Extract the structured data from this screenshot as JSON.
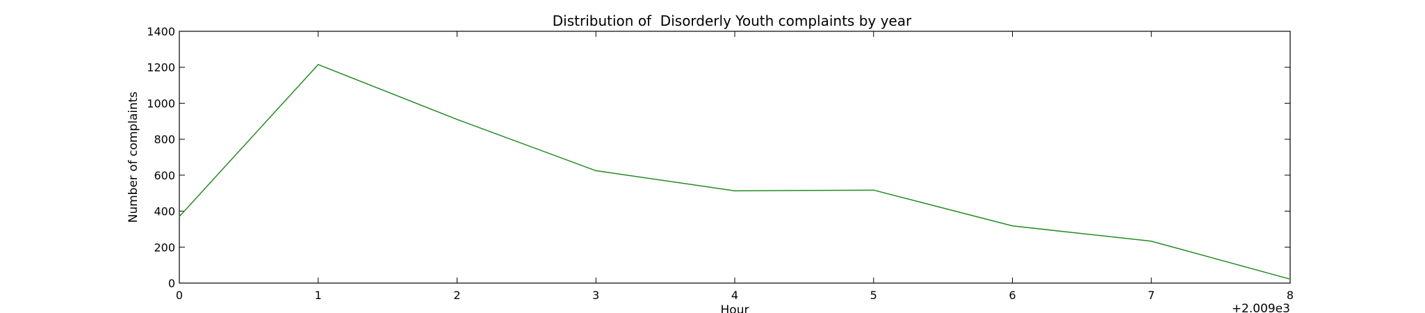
{
  "chart_data": {
    "type": "line",
    "title": "Distribution of  Disorderly Youth complaints by year",
    "xlabel": "Hour",
    "ylabel": "Number of complaints",
    "x_offset_label": "+2.009e3",
    "x_tick_labels": [
      "0",
      "1",
      "2",
      "3",
      "4",
      "5",
      "6",
      "7",
      "8"
    ],
    "y_tick_labels": [
      "0",
      "200",
      "400",
      "600",
      "800",
      "1000",
      "1200",
      "1400"
    ],
    "xlim": [
      0,
      8
    ],
    "ylim": [
      0,
      1400
    ],
    "grid": false,
    "series": [
      {
        "color": "#228B22",
        "x": [
          0,
          1,
          2,
          3,
          4,
          5,
          6,
          7,
          8
        ],
        "values": [
          370,
          1215,
          910,
          625,
          513,
          517,
          318,
          233,
          22
        ]
      }
    ]
  }
}
